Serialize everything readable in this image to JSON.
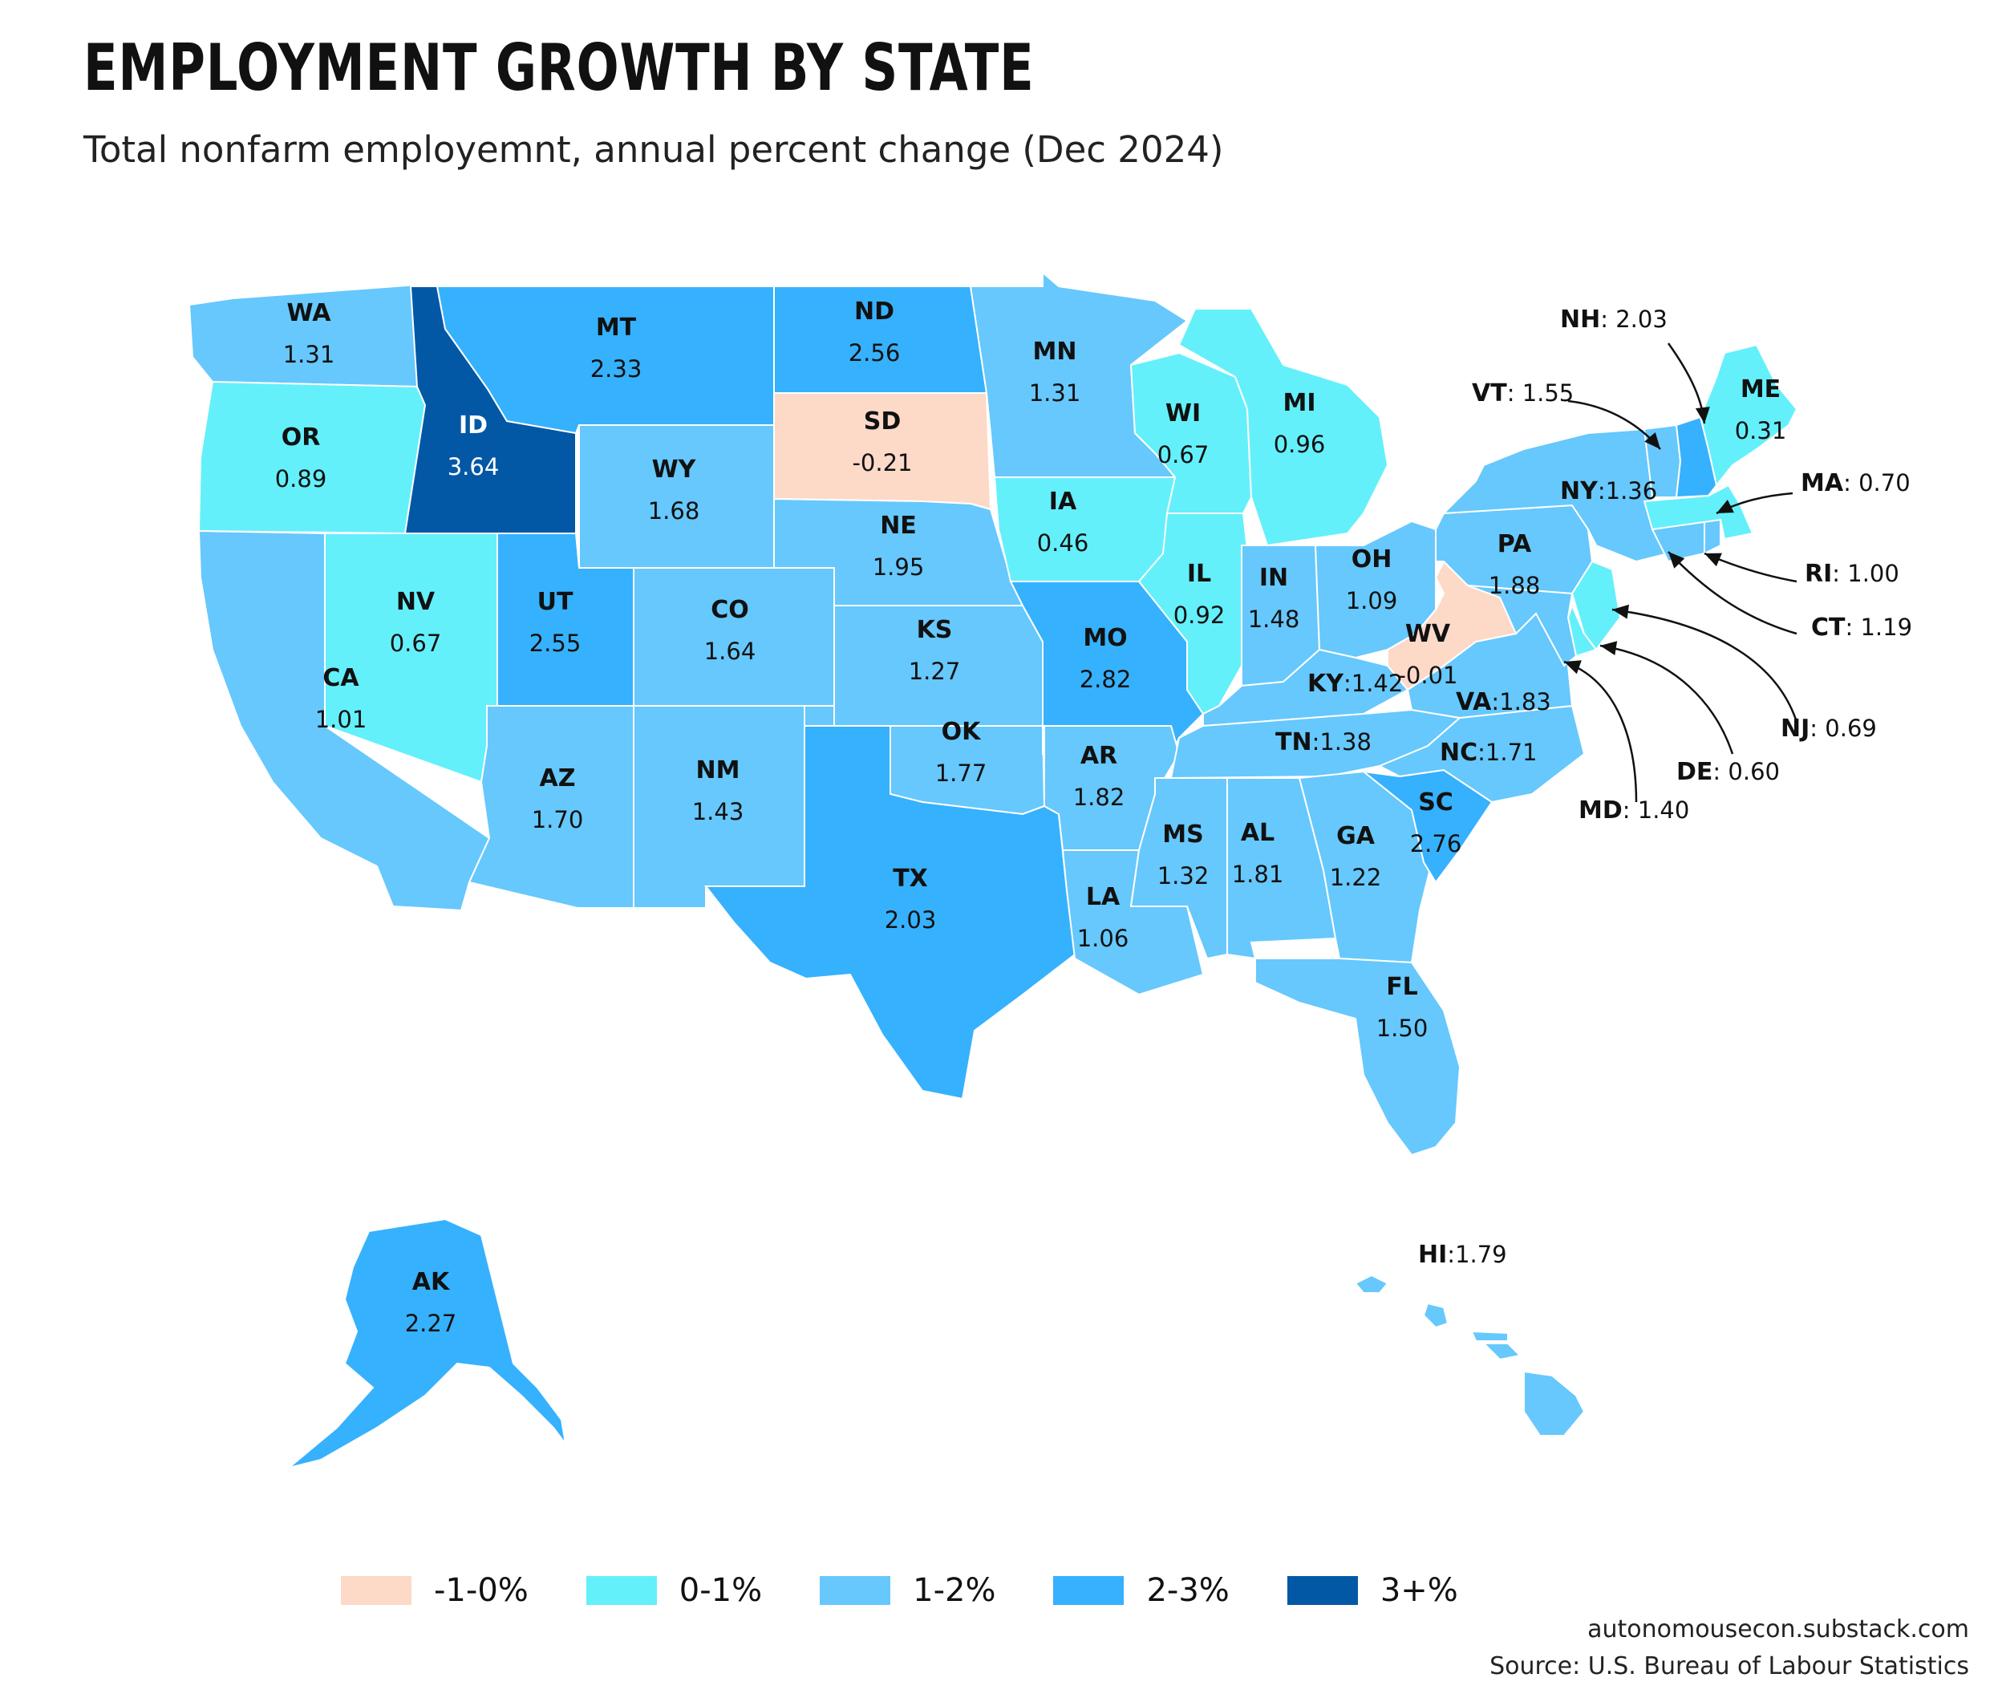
{
  "title": "EMPLOYMENT GROWTH BY STATE",
  "subtitle": "Total nonfarm employemnt, annual percent change (Dec 2024)",
  "credit": "autonomousecon.substack.com",
  "source": "Source: U.S. Bureau of Labour Statistics",
  "legend": [
    {
      "label": "-1-0%",
      "color": "#fdd9c8"
    },
    {
      "label": "0-1%",
      "color": "#64f0fa"
    },
    {
      "label": "1-2%",
      "color": "#66c8fc"
    },
    {
      "label": "2-3%",
      "color": "#36b1fd"
    },
    {
      "label": "3+%",
      "color": "#0358a6"
    }
  ],
  "states": [
    {
      "abbr": "WA",
      "value": "1.31"
    },
    {
      "abbr": "OR",
      "value": "0.89"
    },
    {
      "abbr": "CA",
      "value": "1.01"
    },
    {
      "abbr": "NV",
      "value": "0.67"
    },
    {
      "abbr": "ID",
      "value": "3.64"
    },
    {
      "abbr": "MT",
      "value": "2.33"
    },
    {
      "abbr": "WY",
      "value": "1.68"
    },
    {
      "abbr": "UT",
      "value": "2.55"
    },
    {
      "abbr": "AZ",
      "value": "1.70"
    },
    {
      "abbr": "CO",
      "value": "1.64"
    },
    {
      "abbr": "NM",
      "value": "1.43"
    },
    {
      "abbr": "ND",
      "value": "2.56"
    },
    {
      "abbr": "SD",
      "value": "-0.21"
    },
    {
      "abbr": "NE",
      "value": "1.95"
    },
    {
      "abbr": "KS",
      "value": "1.27"
    },
    {
      "abbr": "OK",
      "value": "1.77"
    },
    {
      "abbr": "TX",
      "value": "2.03"
    },
    {
      "abbr": "MN",
      "value": "1.31"
    },
    {
      "abbr": "IA",
      "value": "0.46"
    },
    {
      "abbr": "MO",
      "value": "2.82"
    },
    {
      "abbr": "AR",
      "value": "1.82"
    },
    {
      "abbr": "LA",
      "value": "1.06"
    },
    {
      "abbr": "WI",
      "value": "0.67"
    },
    {
      "abbr": "IL",
      "value": "0.92"
    },
    {
      "abbr": "MI",
      "value": "0.96"
    },
    {
      "abbr": "IN",
      "value": "1.48"
    },
    {
      "abbr": "OH",
      "value": "1.09"
    },
    {
      "abbr": "KY",
      "value": "1.42"
    },
    {
      "abbr": "TN",
      "value": "1.38"
    },
    {
      "abbr": "MS",
      "value": "1.32"
    },
    {
      "abbr": "AL",
      "value": "1.81"
    },
    {
      "abbr": "GA",
      "value": "1.22"
    },
    {
      "abbr": "FL",
      "value": "1.50"
    },
    {
      "abbr": "SC",
      "value": "2.76"
    },
    {
      "abbr": "NC",
      "value": "1.71"
    },
    {
      "abbr": "VA",
      "value": "1.83"
    },
    {
      "abbr": "WV",
      "value": "-0.01"
    },
    {
      "abbr": "PA",
      "value": "1.88"
    },
    {
      "abbr": "NY",
      "value": "1.36"
    },
    {
      "abbr": "ME",
      "value": "0.31"
    },
    {
      "abbr": "VT",
      "value": "1.55"
    },
    {
      "abbr": "NH",
      "value": "2.03"
    },
    {
      "abbr": "MA",
      "value": "0.70"
    },
    {
      "abbr": "RI",
      "value": "1.00"
    },
    {
      "abbr": "CT",
      "value": "1.19"
    },
    {
      "abbr": "NJ",
      "value": "0.69"
    },
    {
      "abbr": "DE",
      "value": "0.60"
    },
    {
      "abbr": "MD",
      "value": "1.40"
    },
    {
      "abbr": "AK",
      "value": "2.27"
    },
    {
      "abbr": "HI",
      "value": "1.79"
    }
  ]
}
